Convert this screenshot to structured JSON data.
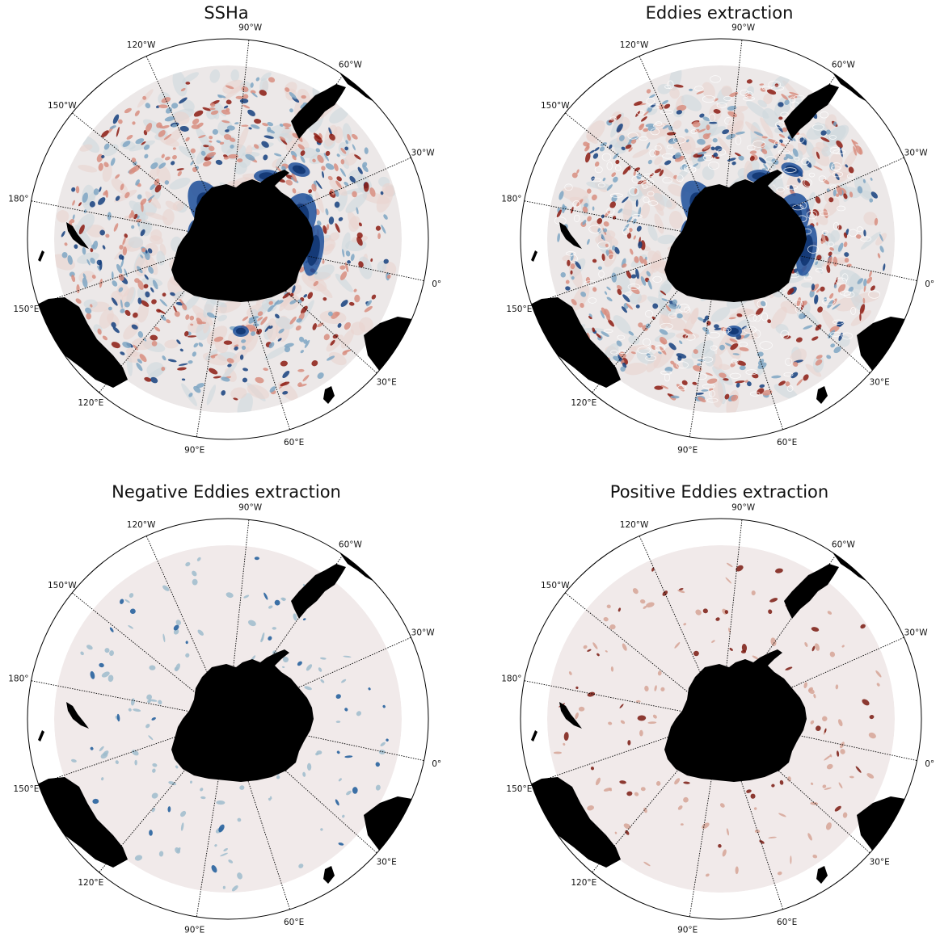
{
  "panels": [
    {
      "title": "SSHa",
      "kind": "ssha"
    },
    {
      "title": "Eddies extraction",
      "kind": "eddies"
    },
    {
      "title": "Negative Eddies extraction",
      "kind": "negative"
    },
    {
      "title": "Positive Eddies extraction",
      "kind": "positive"
    }
  ],
  "longitude_labels": [
    "180°",
    "150°W",
    "120°W",
    "90°W",
    "60°W",
    "30°W",
    "0°",
    "30°E",
    "60°E",
    "90°E",
    "120°E",
    "150°E"
  ],
  "colors": {
    "land": "#000000",
    "negative": "#0b3a8a",
    "positive": "#7a0a0a",
    "background_field": "#f1eaea",
    "gridline": "#000000"
  },
  "colormap": "balance (diverging blue–white–red)",
  "projection": "south polar stereographic"
}
